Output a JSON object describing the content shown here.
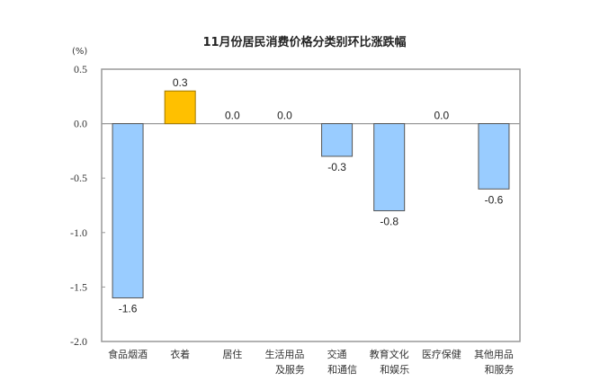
{
  "chart_data": {
    "type": "bar",
    "title": "11月份居民消费价格分类别环比涨跌幅",
    "ylabel": "(%)",
    "xlabel": "",
    "ylim": [
      -2.0,
      0.5
    ],
    "yticks": [
      "0.5",
      "0.0",
      "-0.5",
      "-1.0",
      "-1.5",
      "-2.0"
    ],
    "categories": [
      [
        "食品烟酒"
      ],
      [
        "衣着"
      ],
      [
        "居住"
      ],
      [
        "生活用品",
        "及服务"
      ],
      [
        "交通",
        "和通信"
      ],
      [
        "教育文化",
        "和娱乐"
      ],
      [
        "医疗保健"
      ],
      [
        "其他用品",
        "和服务"
      ]
    ],
    "values": [
      -1.6,
      0.3,
      0.0,
      0.0,
      -0.3,
      -0.8,
      0.0,
      -0.6
    ],
    "value_labels": [
      "-1.6",
      "0.3",
      "0.0",
      "0.0",
      "-0.3",
      "-0.8",
      "0.0",
      "-0.6"
    ],
    "colors": {
      "positive": "#FFC000",
      "negative": "#99CCFF",
      "positive_border": "#A07800",
      "negative_border": "#555555",
      "axis": "#999999"
    },
    "grid": false,
    "legend": null
  }
}
